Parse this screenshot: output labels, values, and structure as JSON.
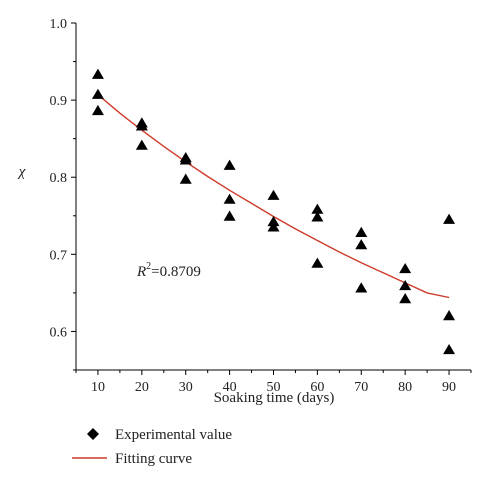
{
  "chart_data": {
    "type": "scatter",
    "xlabel": "Soaking time (days)",
    "ylabel": "χ",
    "xlim": [
      5,
      95
    ],
    "ylim": [
      0.55,
      1.0
    ],
    "x_ticks": [
      10,
      20,
      30,
      40,
      50,
      60,
      70,
      80,
      90
    ],
    "y_ticks": [
      0.6,
      0.7,
      0.8,
      0.9,
      1.0
    ],
    "y_tick_labels": [
      "0.6",
      "0.7",
      "0.8",
      "0.9",
      "1.0"
    ],
    "grid": false,
    "legend_placement": "bottom-left",
    "annotation": {
      "r2_prefix": "R",
      "r2_sup": "2",
      "r2_value": "=0.8709"
    },
    "series": [
      {
        "name": "Experimental value",
        "kind": "scatter",
        "marker": "triangle",
        "color": "#000000",
        "points": [
          [
            10,
            0.933
          ],
          [
            10,
            0.907
          ],
          [
            10,
            0.886
          ],
          [
            20,
            0.87
          ],
          [
            20,
            0.866
          ],
          [
            20,
            0.841
          ],
          [
            30,
            0.825
          ],
          [
            30,
            0.822
          ],
          [
            30,
            0.797
          ],
          [
            40,
            0.815
          ],
          [
            40,
            0.771
          ],
          [
            40,
            0.749
          ],
          [
            50,
            0.776
          ],
          [
            50,
            0.742
          ],
          [
            50,
            0.735
          ],
          [
            60,
            0.758
          ],
          [
            60,
            0.748
          ],
          [
            60,
            0.688
          ],
          [
            70,
            0.728
          ],
          [
            70,
            0.712
          ],
          [
            70,
            0.656
          ],
          [
            80,
            0.681
          ],
          [
            80,
            0.659
          ],
          [
            80,
            0.642
          ],
          [
            90,
            0.745
          ],
          [
            90,
            0.62
          ],
          [
            90,
            0.576
          ]
        ]
      },
      {
        "name": "Fitting curve",
        "kind": "line",
        "color": "#d03a2a",
        "x": [
          10,
          15,
          20,
          25,
          30,
          35,
          40,
          45,
          50,
          55,
          60,
          65,
          70,
          75,
          80,
          85,
          90
        ],
        "y": [
          0.907,
          0.883,
          0.861,
          0.84,
          0.82,
          0.801,
          0.783,
          0.766,
          0.749,
          0.733,
          0.718,
          0.703,
          0.689,
          0.676,
          0.663,
          0.65,
          0.644
        ]
      }
    ]
  }
}
